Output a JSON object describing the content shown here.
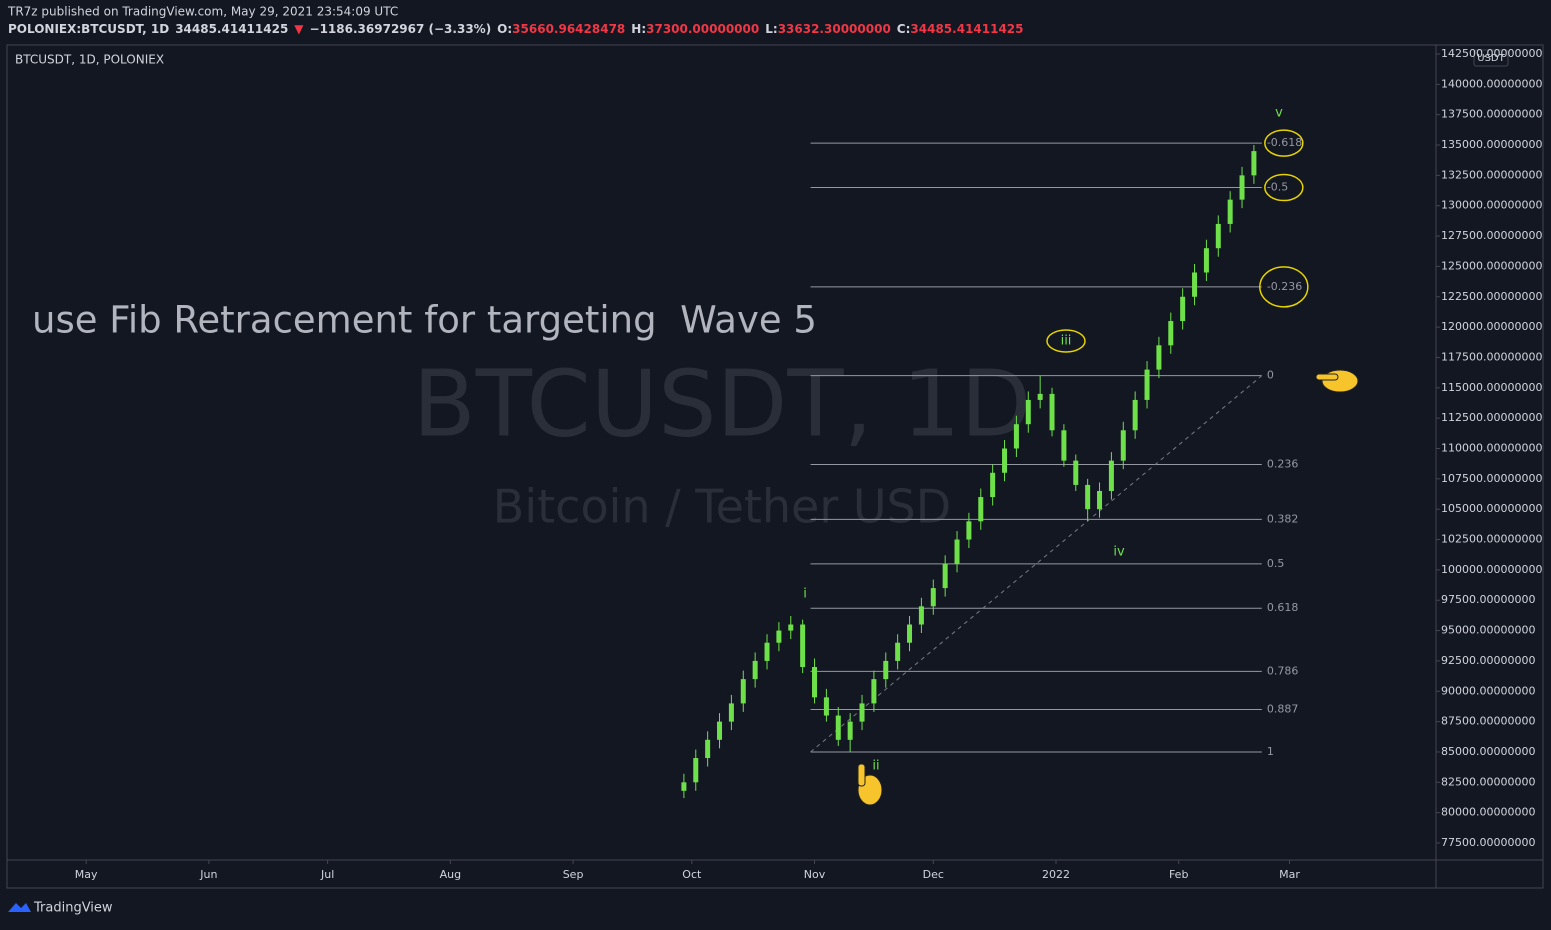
{
  "header": {
    "publisher": "TR7z published on TradingView.com, May 29, 2021 23:54:09 UTC",
    "symbol": "POLONIEX:BTCUSDT, 1D",
    "last": "34485.41411425",
    "arrow": "▼",
    "change": "−1186.36972967 (−3.33%)",
    "o_label": "O:",
    "o": "35660.96428478",
    "h_label": "H:",
    "h": "37300.00000000",
    "l_label": "L:",
    "l": "33632.30000000",
    "c_label": "C:",
    "c": "34485.41411425"
  },
  "footer": {
    "brand": "TradingView"
  },
  "chart_data": {
    "type": "candlestick",
    "title": "BTCUSDT, 1D, POLONIEX",
    "watermark": "BTCUSDT, 1D",
    "watermark_sub": "Bitcoin / Tether USD",
    "annotation": "use Fib Retracement for targeting  Wave 5",
    "currency": "USDT",
    "color": "#6ee04a",
    "x": [
      "2021-09-29",
      "2021-10-02",
      "2021-10-05",
      "2021-10-08",
      "2021-10-11",
      "2021-10-14",
      "2021-10-17",
      "2021-10-20",
      "2021-10-23",
      "2021-10-26",
      "2021-10-29",
      "2021-11-01",
      "2021-11-04",
      "2021-11-07",
      "2021-11-10",
      "2021-11-13",
      "2021-11-16",
      "2021-11-19",
      "2021-11-22",
      "2021-11-25",
      "2021-11-28",
      "2021-12-01",
      "2021-12-04",
      "2021-12-07",
      "2021-12-10",
      "2021-12-13",
      "2021-12-16",
      "2021-12-19",
      "2021-12-22",
      "2021-12-25",
      "2021-12-28",
      "2021-12-31",
      "2022-01-03",
      "2022-01-06",
      "2022-01-09",
      "2022-01-12",
      "2022-01-15",
      "2022-01-18",
      "2022-01-21",
      "2022-01-24",
      "2022-01-27",
      "2022-01-30",
      "2022-02-02",
      "2022-02-05",
      "2022-02-08",
      "2022-02-11",
      "2022-02-14",
      "2022-02-17",
      "2022-02-20"
    ],
    "open": [
      81800,
      82500,
      84500,
      86000,
      87500,
      89000,
      91000,
      92500,
      94000,
      95000,
      95500,
      92000,
      89500,
      88000,
      86000,
      87500,
      89000,
      91000,
      92500,
      94000,
      95500,
      97000,
      98500,
      100500,
      102500,
      104000,
      106000,
      108000,
      110000,
      112000,
      114000,
      114500,
      111500,
      109000,
      107000,
      105000,
      106500,
      109000,
      111500,
      114000,
      116500,
      118500,
      120500,
      122500,
      124500,
      126500,
      128500,
      130500,
      132500
    ],
    "high": [
      83200,
      85200,
      86700,
      88200,
      89700,
      91700,
      93200,
      94700,
      95700,
      96200,
      95900,
      92700,
      90200,
      88700,
      88200,
      89700,
      91700,
      93200,
      94700,
      96200,
      97700,
      99200,
      101200,
      103200,
      104700,
      106700,
      108700,
      110700,
      112700,
      114700,
      116000,
      115000,
      112000,
      109500,
      107500,
      107200,
      109700,
      112200,
      114700,
      117200,
      119200,
      121200,
      123200,
      125200,
      127200,
      129200,
      131200,
      133200,
      135000
    ],
    "low": [
      81200,
      81800,
      83800,
      85300,
      86800,
      88300,
      90300,
      91800,
      93300,
      94300,
      91500,
      89000,
      87500,
      85500,
      85000,
      86800,
      88300,
      90300,
      91800,
      93300,
      94800,
      96300,
      97800,
      99800,
      101800,
      103300,
      105300,
      107300,
      109300,
      111300,
      113300,
      111000,
      108500,
      106500,
      104000,
      104300,
      105800,
      108300,
      110800,
      113300,
      115800,
      117800,
      119800,
      121800,
      123800,
      125800,
      127800,
      129800,
      131800
    ],
    "close": [
      82500,
      84500,
      86000,
      87500,
      89000,
      91000,
      92500,
      94000,
      95000,
      95500,
      92000,
      89500,
      88000,
      86000,
      87500,
      89000,
      91000,
      92500,
      94000,
      95500,
      97000,
      98500,
      100500,
      102500,
      104000,
      106000,
      108000,
      110000,
      112000,
      114000,
      114500,
      111500,
      109000,
      107000,
      105000,
      106500,
      109000,
      111500,
      114000,
      116500,
      118500,
      120500,
      122500,
      124500,
      126500,
      128500,
      130500,
      132500,
      134500
    ],
    "xlim": [
      "2021-04-11",
      "2022-04-07"
    ],
    "xticks": [
      {
        "value": "2021-05-01",
        "label": "May"
      },
      {
        "value": "2021-06-01",
        "label": "Jun"
      },
      {
        "value": "2021-07-01",
        "label": "Jul"
      },
      {
        "value": "2021-08-01",
        "label": "Aug"
      },
      {
        "value": "2021-09-01",
        "label": "Sep"
      },
      {
        "value": "2021-10-01",
        "label": "Oct"
      },
      {
        "value": "2021-11-01",
        "label": "Nov"
      },
      {
        "value": "2021-12-01",
        "label": "Dec"
      },
      {
        "value": "2022-01-01",
        "label": "2022"
      },
      {
        "value": "2022-02-01",
        "label": "Feb"
      },
      {
        "value": "2022-03-01",
        "label": "Mar"
      }
    ],
    "ylim": [
      76100,
      143240
    ],
    "yticks": [
      {
        "value": 77500,
        "label": "77500.00000000"
      },
      {
        "value": 80000,
        "label": "80000.00000000"
      },
      {
        "value": 82500,
        "label": "82500.00000000"
      },
      {
        "value": 85000,
        "label": "85000.00000000"
      },
      {
        "value": 87500,
        "label": "87500.00000000"
      },
      {
        "value": 90000,
        "label": "90000.00000000"
      },
      {
        "value": 92500,
        "label": "92500.00000000"
      },
      {
        "value": 95000,
        "label": "95000.00000000"
      },
      {
        "value": 97500,
        "label": "97500.00000000"
      },
      {
        "value": 100000,
        "label": "100000.00000000"
      },
      {
        "value": 102500,
        "label": "102500.00000000"
      },
      {
        "value": 105000,
        "label": "105000.00000000"
      },
      {
        "value": 107500,
        "label": "107500.00000000"
      },
      {
        "value": 110000,
        "label": "110000.00000000"
      },
      {
        "value": 112500,
        "label": "112500.00000000"
      },
      {
        "value": 115000,
        "label": "115000.00000000"
      },
      {
        "value": 117500,
        "label": "117500.00000000"
      },
      {
        "value": 120000,
        "label": "120000.00000000"
      },
      {
        "value": 122500,
        "label": "122500.00000000"
      },
      {
        "value": 125000,
        "label": "125000.00000000"
      },
      {
        "value": 127500,
        "label": "127500.00000000"
      },
      {
        "value": 130000,
        "label": "130000.00000000"
      },
      {
        "value": 132500,
        "label": "132500.00000000"
      },
      {
        "value": 135000,
        "label": "135000.00000000"
      },
      {
        "value": 137500,
        "label": "137500.00000000"
      },
      {
        "value": 140000,
        "label": "140000.00000000"
      },
      {
        "value": 142500,
        "label": "142500.00000000"
      }
    ],
    "fib": {
      "start": "2021-10-31",
      "end": "2022-02-22",
      "levels": [
        -0.618,
        -0.5,
        -0.236,
        0,
        0.236,
        0.382,
        0.5,
        0.618,
        0.786,
        0.887,
        1
      ],
      "prices": [
        135158,
        131500,
        123316,
        116000,
        108684,
        104158,
        100500,
        96842,
        91634,
        88503,
        85000
      ],
      "highlighted": [
        true,
        true,
        true,
        false,
        false,
        false,
        false,
        false,
        false,
        false,
        false
      ],
      "line_color": "#9598a1",
      "highlight_color": "#e6d300"
    },
    "waves": [
      "i",
      "ii",
      "iii",
      "iv",
      "v"
    ]
  }
}
